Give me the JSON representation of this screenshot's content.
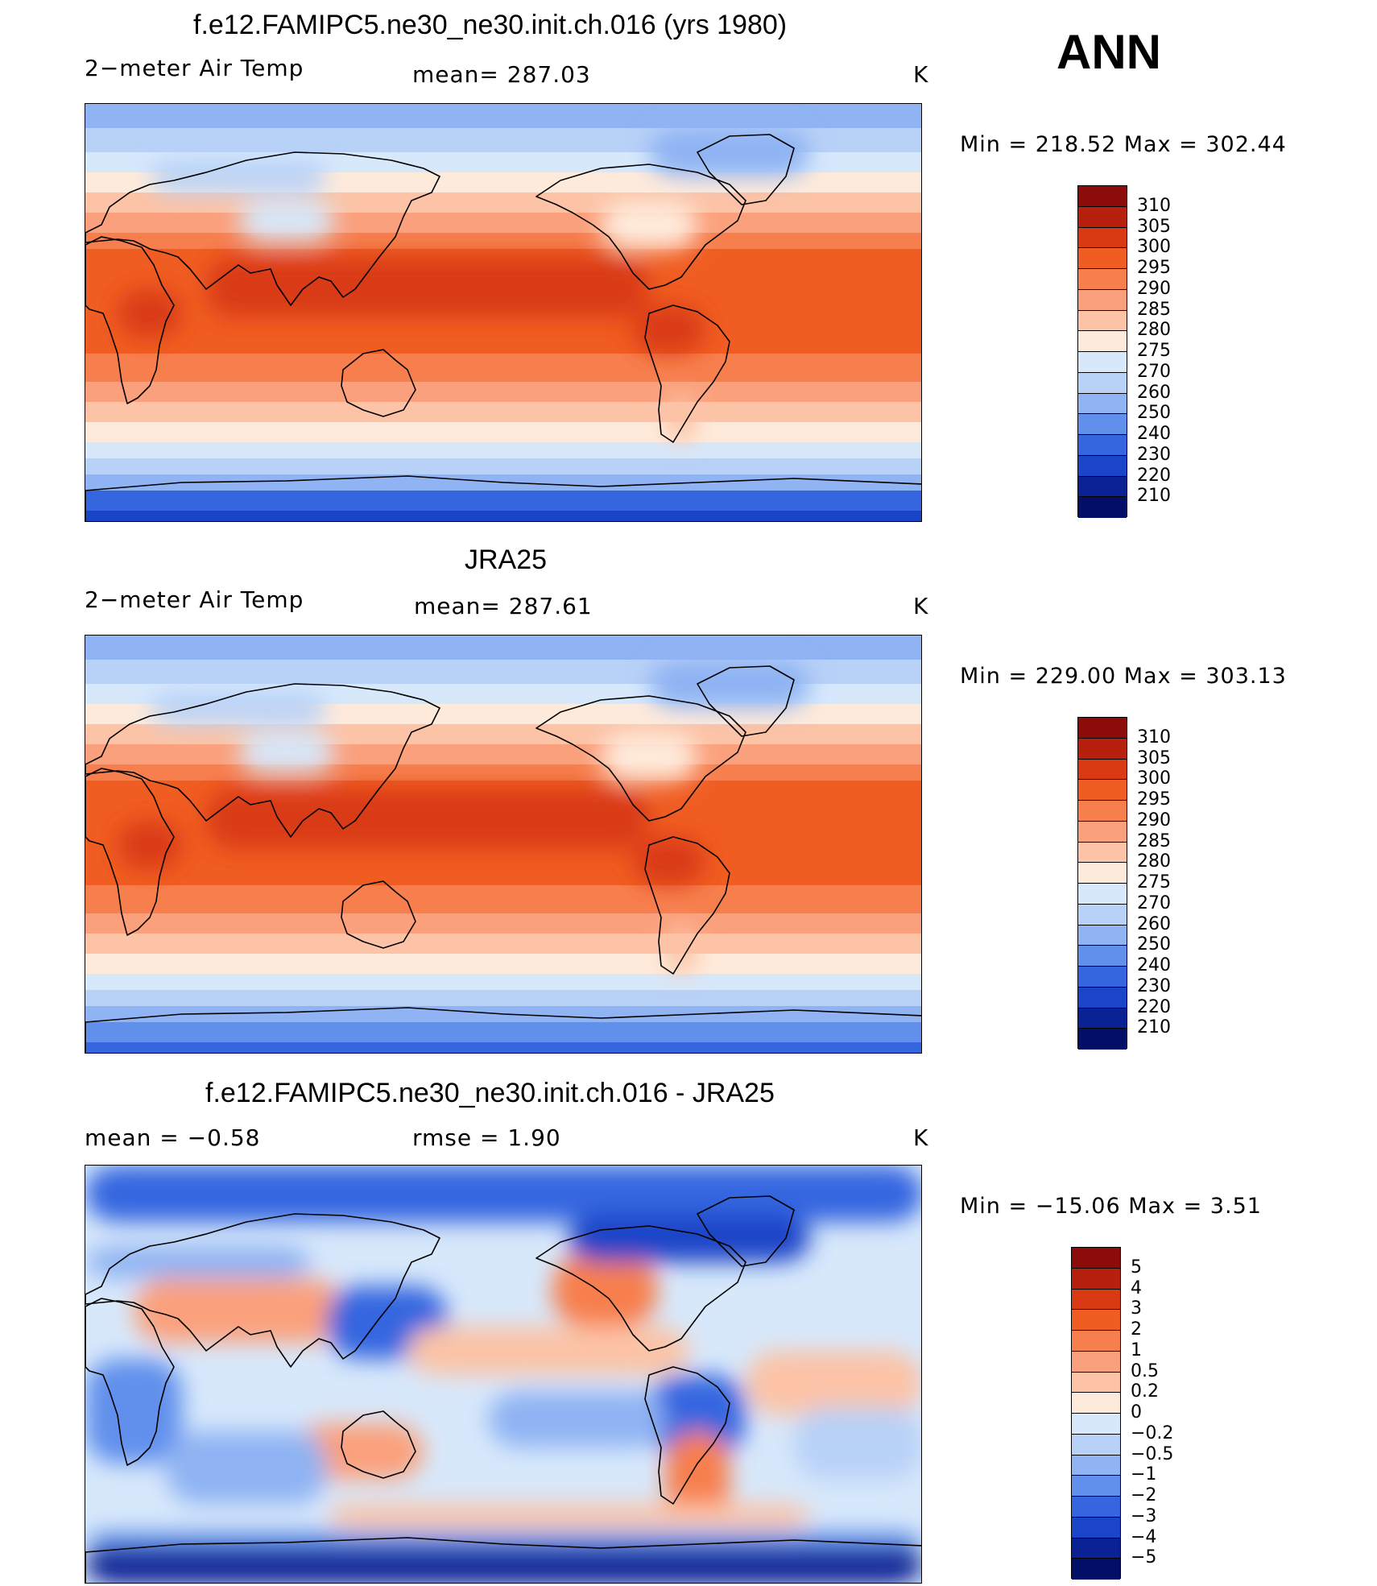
{
  "season_label": "ANN",
  "panels": [
    {
      "title": "f.e12.FAMIPC5.ne30_ne30.init.ch.016 (yrs 1980)",
      "left_label": "2−meter Air Temp",
      "center_label": "mean= 287.03",
      "units": "K",
      "minmax": "Min = 218.52 Max = 302.44",
      "colorbar": {
        "levels": [
          "310",
          "305",
          "300",
          "295",
          "290",
          "285",
          "280",
          "275",
          "270",
          "260",
          "250",
          "240",
          "230",
          "220",
          "210"
        ],
        "colors": [
          "#8c0c0c",
          "#b8200e",
          "#d93a14",
          "#f05d22",
          "#f77f4e",
          "#fba07c",
          "#fcc3a6",
          "#feeadb",
          "#d7e8fb",
          "#b8d1f7",
          "#8fb3f3",
          "#6090ec",
          "#3566e0",
          "#1a45c8",
          "#0a2294",
          "#030f66"
        ]
      },
      "map_style": "model"
    },
    {
      "title": "JRA25",
      "left_label": "2−meter Air Temp",
      "center_label": "mean= 287.61",
      "units": "K",
      "minmax": "Min = 229.00 Max = 303.13",
      "colorbar": {
        "levels": [
          "310",
          "305",
          "300",
          "295",
          "290",
          "285",
          "280",
          "275",
          "270",
          "260",
          "250",
          "240",
          "230",
          "220",
          "210"
        ],
        "colors": [
          "#8c0c0c",
          "#b8200e",
          "#d93a14",
          "#f05d22",
          "#f77f4e",
          "#fba07c",
          "#fcc3a6",
          "#feeadb",
          "#d7e8fb",
          "#b8d1f7",
          "#8fb3f3",
          "#6090ec",
          "#3566e0",
          "#1a45c8",
          "#0a2294",
          "#030f66"
        ]
      },
      "map_style": "obs"
    },
    {
      "title": "f.e12.FAMIPC5.ne30_ne30.init.ch.016 - JRA25",
      "left_label": "mean =   −0.58",
      "center_label": "rmse =    1.90",
      "units": "K",
      "minmax": "Min = −15.06 Max =    3.51",
      "colorbar": {
        "levels": [
          "5",
          "4",
          "3",
          "2",
          "1",
          "0.5",
          "0.2",
          "0",
          "−0.2",
          "−0.5",
          "−1",
          "−2",
          "−3",
          "−4",
          "−5"
        ],
        "colors": [
          "#8c0c0c",
          "#b8200e",
          "#d93a14",
          "#f05d22",
          "#f77f4e",
          "#fba07c",
          "#fcc3a6",
          "#feeadb",
          "#d7e8fb",
          "#b8d1f7",
          "#8fb3f3",
          "#6090ec",
          "#3566e0",
          "#1a45c8",
          "#0a2294",
          "#030f66"
        ]
      },
      "map_style": "diff"
    }
  ]
}
